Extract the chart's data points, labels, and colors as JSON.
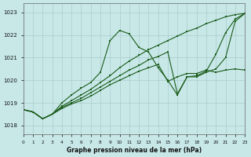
{
  "xlabel": "Graphe pression niveau de la mer (hPa)",
  "background_color": "#c8e8e8",
  "grid_color": "#aacccc",
  "line_color": "#1a5c1a",
  "xlim": [
    0,
    23
  ],
  "ylim": [
    1017.6,
    1023.4
  ],
  "yticks": [
    1018,
    1019,
    1020,
    1021,
    1022,
    1023
  ],
  "xticks": [
    0,
    1,
    2,
    3,
    4,
    5,
    6,
    7,
    8,
    9,
    10,
    11,
    12,
    13,
    14,
    15,
    16,
    17,
    18,
    19,
    20,
    21,
    22,
    23
  ],
  "series": [
    {
      "x": [
        0,
        1,
        2,
        3,
        4,
        5,
        6,
        7,
        8,
        9,
        10,
        11,
        12,
        13,
        14,
        15,
        16,
        17,
        18,
        19,
        20,
        21,
        22,
        23
      ],
      "y": [
        1018.7,
        1018.6,
        1018.3,
        1018.5,
        1019.0,
        1019.35,
        1019.65,
        1019.9,
        1020.35,
        1021.75,
        1022.2,
        1022.05,
        1021.45,
        1021.25,
        1020.55,
        1020.0,
        1019.35,
        1020.15,
        1020.2,
        1020.4,
        1021.15,
        1022.1,
        1022.7,
        1022.95
      ]
    },
    {
      "x": [
        0,
        1,
        2,
        3,
        4,
        5,
        6,
        7,
        8,
        9,
        10,
        11,
        12,
        13,
        14,
        15,
        16,
        17,
        18,
        19,
        20,
        21,
        22,
        23
      ],
      "y": [
        1018.7,
        1018.6,
        1018.3,
        1018.5,
        1018.85,
        1019.1,
        1019.35,
        1019.6,
        1019.9,
        1020.2,
        1020.55,
        1020.85,
        1021.1,
        1021.35,
        1021.55,
        1021.75,
        1021.95,
        1022.15,
        1022.3,
        1022.5,
        1022.65,
        1022.8,
        1022.9,
        1022.95
      ]
    },
    {
      "x": [
        0,
        1,
        2,
        3,
        4,
        5,
        6,
        7,
        8,
        9,
        10,
        11,
        12,
        13,
        14,
        15,
        16,
        17,
        18,
        19,
        20,
        21,
        22,
        23
      ],
      "y": [
        1018.7,
        1018.6,
        1018.3,
        1018.5,
        1018.8,
        1019.0,
        1019.2,
        1019.45,
        1019.7,
        1019.95,
        1020.2,
        1020.45,
        1020.65,
        1020.9,
        1021.05,
        1021.25,
        1019.4,
        1020.15,
        1020.15,
        1020.35,
        1020.5,
        1021.0,
        1022.6,
        1022.95
      ]
    },
    {
      "x": [
        0,
        1,
        2,
        3,
        4,
        5,
        6,
        7,
        8,
        9,
        10,
        11,
        12,
        13,
        14,
        15,
        16,
        17,
        18,
        19,
        20,
        21,
        22,
        23
      ],
      "y": [
        1018.7,
        1018.6,
        1018.3,
        1018.5,
        1018.75,
        1018.95,
        1019.1,
        1019.3,
        1019.55,
        1019.8,
        1020.0,
        1020.2,
        1020.4,
        1020.55,
        1020.7,
        1019.95,
        1020.15,
        1020.3,
        1020.3,
        1020.45,
        1020.35,
        1020.45,
        1020.5,
        1020.45
      ]
    }
  ]
}
